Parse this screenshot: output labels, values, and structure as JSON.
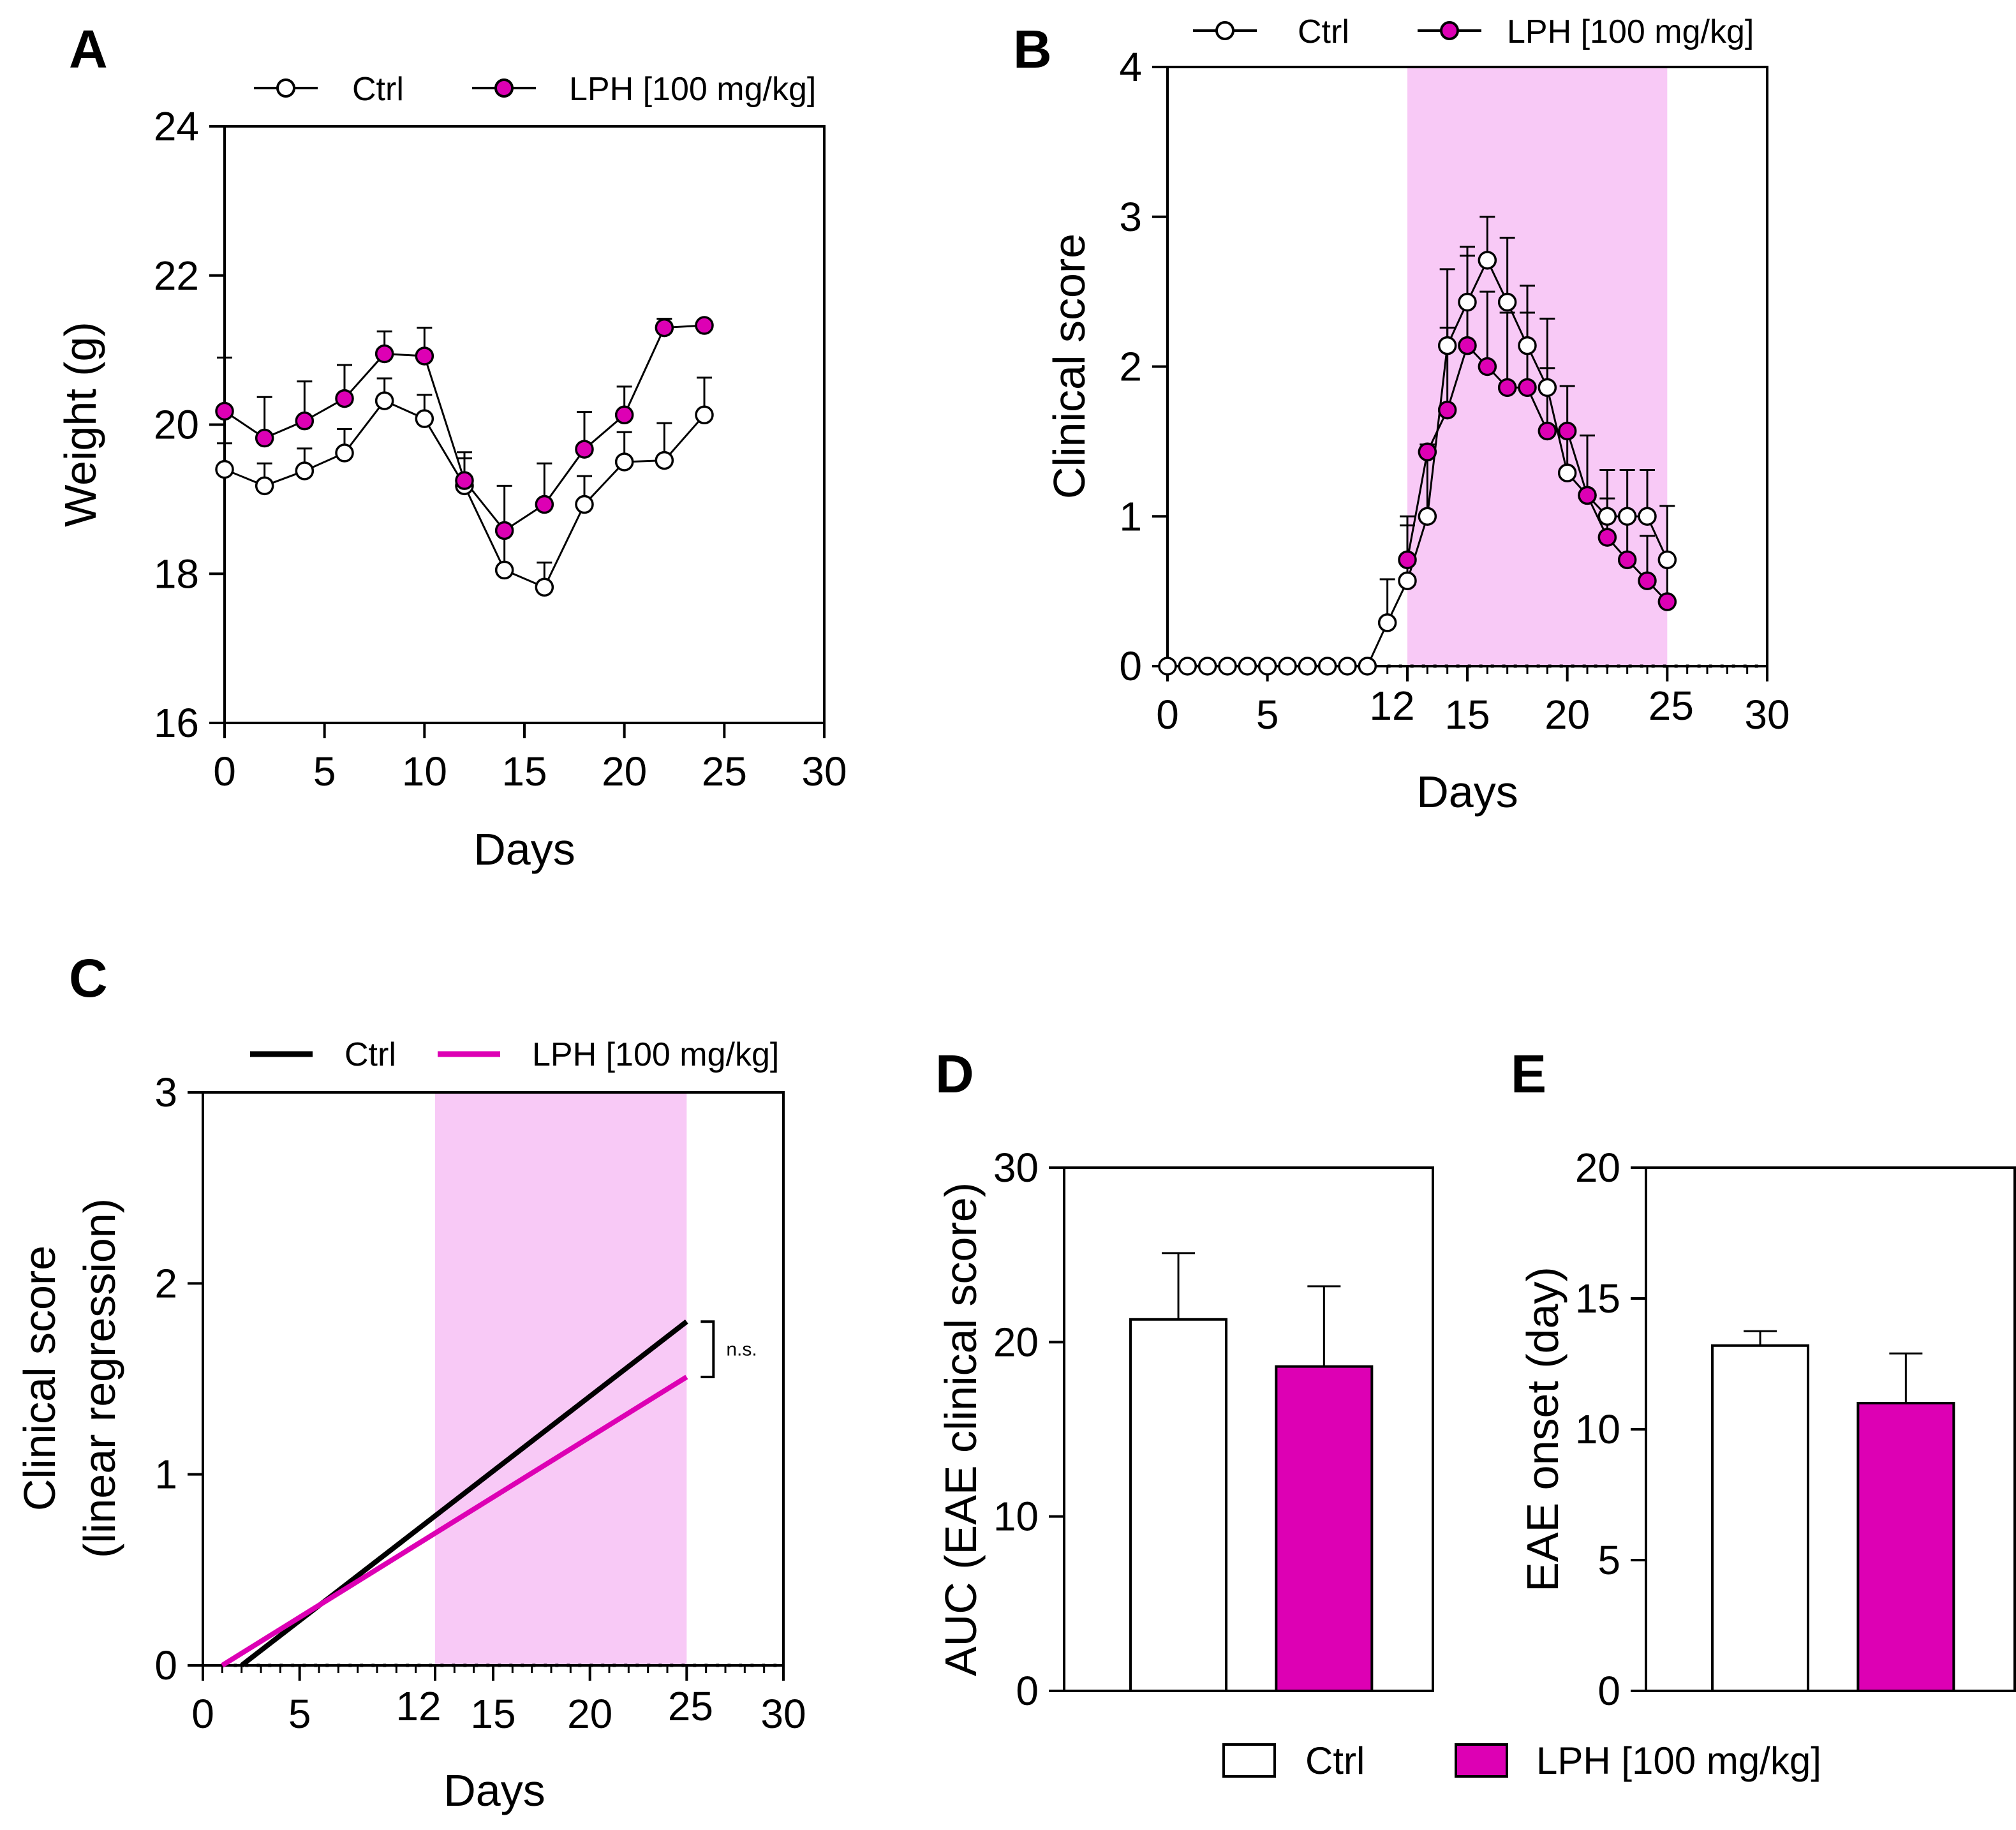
{
  "colors": {
    "ctrl": "#ffffff",
    "lph": "#dd00b4",
    "shade": "#f8c9f6",
    "axis": "#000000"
  },
  "legend_bottom": {
    "ctrl": "Ctrl",
    "lph": "LPH [100 mg/kg]"
  },
  "chart_data": [
    {
      "panel": "A",
      "type": "line",
      "xlabel": "Days",
      "ylabel": "Weight (g)",
      "xlim": [
        0,
        30
      ],
      "ylim": [
        16,
        24
      ],
      "xticks": [
        0,
        5,
        10,
        15,
        20,
        25,
        30
      ],
      "yticks": [
        16,
        18,
        20,
        22,
        24
      ],
      "legend": [
        "Ctrl",
        "LPH [100 mg/kg]"
      ],
      "series": [
        {
          "name": "Ctrl",
          "x": [
            0,
            2,
            4,
            6,
            8,
            10,
            12,
            14,
            16,
            18,
            20,
            22,
            24
          ],
          "y": [
            19.4,
            19.18,
            19.38,
            19.62,
            20.32,
            20.08,
            19.18,
            18.05,
            17.82,
            18.93,
            19.5,
            19.52,
            20.13
          ],
          "err": [
            0.35,
            0.3,
            0.3,
            0.32,
            0.3,
            0.32,
            0.45,
            0.5,
            0.33,
            0.38,
            0.4,
            0.5,
            0.5
          ]
        },
        {
          "name": "LPH [100 mg/kg]",
          "x": [
            0,
            2,
            4,
            6,
            8,
            10,
            12,
            14,
            16,
            18,
            20,
            22,
            24
          ],
          "y": [
            20.18,
            19.82,
            20.05,
            20.35,
            20.95,
            20.92,
            19.25,
            18.58,
            18.93,
            19.67,
            20.13,
            21.3,
            21.33
          ],
          "err": [
            0.72,
            0.55,
            0.53,
            0.45,
            0.3,
            0.38,
            0.3,
            0.6,
            0.55,
            0.5,
            0.38,
            0.12,
            0.05
          ]
        }
      ]
    },
    {
      "panel": "B",
      "type": "line",
      "xlabel": "Days",
      "ylabel": "Clinical score",
      "xlim": [
        0,
        30
      ],
      "ylim": [
        0,
        4
      ],
      "xticks": [
        0,
        5,
        12,
        15,
        20,
        25,
        30
      ],
      "yticks": [
        0,
        1,
        2,
        3,
        4
      ],
      "shaded_range": [
        12,
        25
      ],
      "legend": [
        "Ctrl",
        "LPH [100 mg/kg]"
      ],
      "series": [
        {
          "name": "Ctrl",
          "x": [
            0,
            1,
            2,
            3,
            4,
            5,
            6,
            7,
            8,
            9,
            10,
            11,
            12,
            13,
            14,
            15,
            16,
            17,
            18,
            19,
            20,
            21,
            22,
            23,
            24,
            25
          ],
          "y": [
            0,
            0,
            0,
            0,
            0,
            0,
            0,
            0,
            0,
            0,
            0,
            0.29,
            0.57,
            1.0,
            2.14,
            2.43,
            2.71,
            2.43,
            2.14,
            1.86,
            1.29,
            1.14,
            1.0,
            1.0,
            1.0,
            0.71
          ],
          "err": [
            0,
            0,
            0,
            0,
            0,
            0,
            0,
            0,
            0,
            0,
            0,
            0.29,
            0.37,
            0.44,
            0.51,
            0.37,
            0.29,
            0.43,
            0.4,
            0.46,
            0.29,
            0.4,
            0.31,
            0.31,
            0.31,
            0.36
          ]
        },
        {
          "name": "LPH [100 mg/kg]",
          "x": [
            12,
            13,
            14,
            15,
            16,
            17,
            18,
            19,
            20,
            21,
            22,
            23,
            24,
            25
          ],
          "y": [
            0.71,
            1.43,
            1.71,
            2.14,
            2.0,
            1.86,
            1.86,
            1.57,
            1.57,
            1.14,
            0.86,
            0.71,
            0.57,
            0.43
          ],
          "err": [
            0.29,
            0.05,
            0.55,
            0.6,
            0.5,
            0.5,
            0.5,
            0.42,
            0.3,
            0.4,
            0.26,
            0.3,
            0.3,
            0.3
          ]
        }
      ]
    },
    {
      "panel": "C",
      "type": "line",
      "xlabel": "Days",
      "ylabel": "Clinical score",
      "ylabel2": "(linear regression)",
      "xlim": [
        0,
        30
      ],
      "ylim": [
        0,
        3
      ],
      "xticks": [
        0,
        5,
        12,
        15,
        20,
        25,
        30
      ],
      "yticks": [
        0,
        1,
        2,
        3
      ],
      "shaded_range": [
        12,
        25
      ],
      "annotation": "n.s.",
      "legend": [
        "Ctrl",
        "LPH [100 mg/kg]"
      ],
      "series": [
        {
          "name": "Ctrl",
          "x": [
            2,
            25
          ],
          "y": [
            0,
            1.8
          ]
        },
        {
          "name": "LPH [100 mg/kg]",
          "x": [
            1,
            25
          ],
          "y": [
            0,
            1.51
          ]
        }
      ]
    },
    {
      "panel": "D",
      "type": "bar",
      "ylabel": "AUC (EAE clinical score)",
      "ylim": [
        0,
        30
      ],
      "yticks": [
        0,
        10,
        20,
        30
      ],
      "categories": [
        "Ctrl",
        "LPH [100 mg/kg]"
      ],
      "values": [
        21.3,
        18.6
      ],
      "err": [
        3.8,
        4.6
      ]
    },
    {
      "panel": "E",
      "type": "bar",
      "ylabel": "EAE onset (day)",
      "ylim": [
        0,
        20
      ],
      "yticks": [
        0,
        5,
        10,
        15,
        20
      ],
      "categories": [
        "Ctrl",
        "LPH [100 mg/kg]"
      ],
      "values": [
        13.2,
        11.0
      ],
      "err": [
        0.55,
        1.9
      ]
    }
  ]
}
